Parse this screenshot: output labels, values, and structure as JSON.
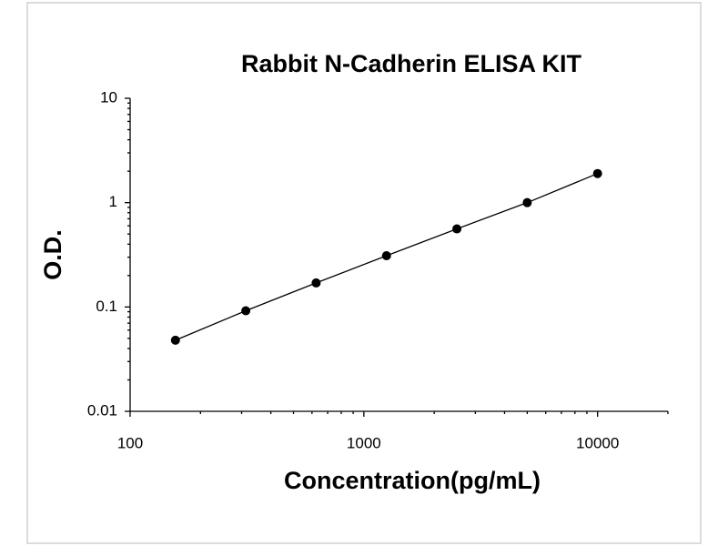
{
  "chart_data": {
    "type": "scatter",
    "title": "Rabbit N-Cadherin ELISA KIT",
    "x_label": "Concentration(pg/mL)",
    "y_label": "O.D.",
    "x": [
      156.25,
      312.5,
      625,
      1250,
      2500,
      5000,
      10000
    ],
    "series": [
      {
        "color": "#000000",
        "values": [
          0.048,
          0.092,
          0.17,
          0.31,
          0.56,
          1.0,
          1.9
        ]
      }
    ],
    "xlim": [
      100,
      20000
    ],
    "xticks": [
      100,
      1000,
      10000
    ],
    "ylim": [
      0.01,
      10
    ],
    "yticks": [
      0.01,
      0.1,
      1,
      10
    ],
    "xscale": "log",
    "yscale": "log",
    "grid": false,
    "trendline": true
  }
}
